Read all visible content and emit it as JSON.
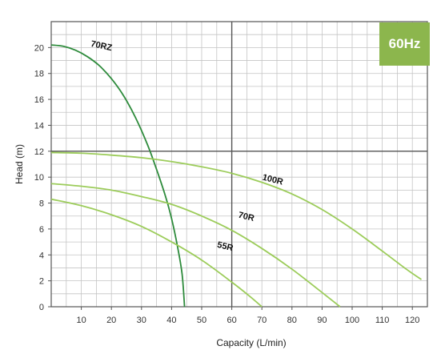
{
  "badge": {
    "label": "60Hz",
    "color": "#8cb64d"
  },
  "chart_data": {
    "type": "line",
    "title": "",
    "xlabel": "Capacity (L/min)",
    "ylabel": "Head (m)",
    "xlim": [
      0,
      125
    ],
    "ylim": [
      0,
      22
    ],
    "x_ticks": [
      10,
      20,
      30,
      40,
      50,
      60,
      70,
      80,
      90,
      100,
      110,
      120
    ],
    "y_ticks": [
      0,
      2,
      4,
      6,
      8,
      10,
      12,
      14,
      16,
      18,
      20
    ],
    "grid": true,
    "legend": "none",
    "reference_lines": {
      "x": 60,
      "y": 12
    },
    "series": [
      {
        "name": "70RZ",
        "color": "#2e8b3c",
        "points": [
          [
            0,
            20.2
          ],
          [
            4,
            20.1
          ],
          [
            8,
            19.8
          ],
          [
            12,
            19.3
          ],
          [
            16,
            18.6
          ],
          [
            20,
            17.6
          ],
          [
            24,
            16.3
          ],
          [
            28,
            14.6
          ],
          [
            32,
            12.5
          ],
          [
            35,
            10.6
          ],
          [
            38,
            8.5
          ],
          [
            40,
            6.8
          ],
          [
            42,
            4.6
          ],
          [
            43.5,
            2.5
          ],
          [
            44.3,
            0
          ]
        ]
      },
      {
        "name": "100R",
        "color": "#9ccc5a",
        "points": [
          [
            0,
            11.9
          ],
          [
            10,
            11.85
          ],
          [
            20,
            11.7
          ],
          [
            30,
            11.5
          ],
          [
            40,
            11.2
          ],
          [
            50,
            10.8
          ],
          [
            60,
            10.3
          ],
          [
            70,
            9.6
          ],
          [
            80,
            8.7
          ],
          [
            90,
            7.5
          ],
          [
            100,
            6.0
          ],
          [
            110,
            4.3
          ],
          [
            118,
            2.9
          ],
          [
            123,
            2.1
          ]
        ]
      },
      {
        "name": "70R",
        "color": "#9ccc5a",
        "points": [
          [
            0,
            9.5
          ],
          [
            10,
            9.3
          ],
          [
            20,
            9.0
          ],
          [
            30,
            8.5
          ],
          [
            40,
            7.9
          ],
          [
            50,
            7.0
          ],
          [
            60,
            5.9
          ],
          [
            70,
            4.5
          ],
          [
            80,
            2.9
          ],
          [
            90,
            1.1
          ],
          [
            96,
            0
          ]
        ]
      },
      {
        "name": "55R",
        "color": "#9ccc5a",
        "points": [
          [
            0,
            8.3
          ],
          [
            10,
            7.8
          ],
          [
            20,
            7.1
          ],
          [
            30,
            6.2
          ],
          [
            40,
            5.0
          ],
          [
            50,
            3.6
          ],
          [
            60,
            1.9
          ],
          [
            66,
            0.8
          ],
          [
            70,
            0
          ]
        ]
      }
    ],
    "series_labels": [
      {
        "series": "70RZ",
        "text": "70RZ",
        "x": 13,
        "y": 20.1
      },
      {
        "series": "100R",
        "text": "100R",
        "x": 70,
        "y": 9.8
      },
      {
        "series": "70R",
        "text": "70R",
        "x": 62,
        "y": 6.9
      },
      {
        "series": "55R",
        "text": "55R",
        "x": 55,
        "y": 4.6
      }
    ]
  }
}
